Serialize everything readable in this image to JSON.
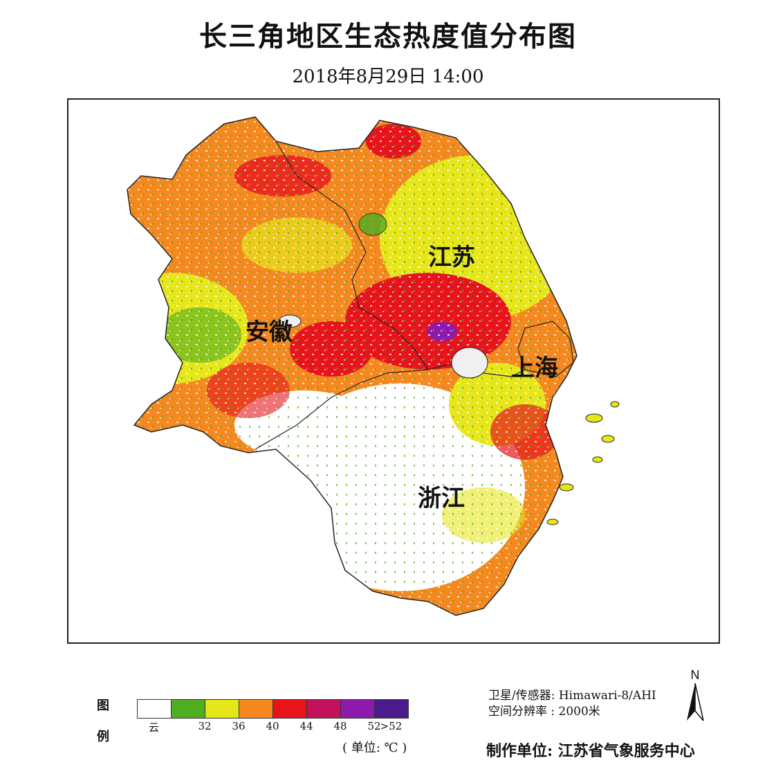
{
  "title": "长三角地区生态热度值分布图",
  "subtitle": "2018年8月29日  14:00",
  "regions": {
    "jiangsu": "江苏",
    "anhui": "安徽",
    "shanghai": "上海",
    "zhejiang": "浙江"
  },
  "legend": {
    "side_label_top": "图",
    "side_label_bottom": "例",
    "colors": [
      "#ffffff",
      "#4fae1f",
      "#e6e61a",
      "#f5891f",
      "#e8141c",
      "#c2125c",
      "#8e1aad",
      "#4b1a8c"
    ],
    "tick_labels": [
      "云",
      "32",
      "36",
      "40",
      "44",
      "48",
      "52",
      ">52"
    ],
    "unit": "( 单位: ℃ )"
  },
  "meta": {
    "satellite": "卫星/传感器: Himawari-8/AHI",
    "resolution": "空间分辨率 : 2000米",
    "producer": "制作单位: 江苏省气象服务中心"
  },
  "north_arrow": {
    "label": "N"
  }
}
